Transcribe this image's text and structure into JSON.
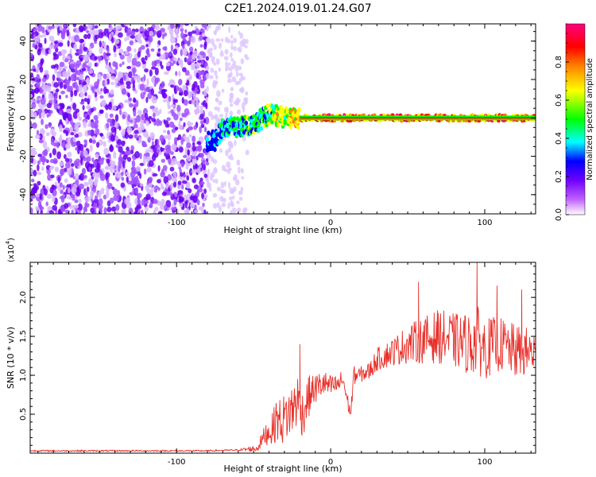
{
  "title": "C2E1.2024.019.01.24.G07",
  "chart_data": [
    {
      "type": "heatmap",
      "xlabel": "Height of straight line (km)",
      "ylabel": "Frequency (Hz)",
      "xlim": [
        -195,
        133
      ],
      "ylim": [
        -50,
        49
      ],
      "xticks": [
        -100,
        0,
        100
      ],
      "xtick_labels": [
        "-100",
        "0",
        "100"
      ],
      "yticks": [
        -40,
        -20,
        0,
        20,
        40
      ],
      "ytick_labels": [
        "-40",
        "-20",
        "0",
        "20",
        "40"
      ],
      "colorbar": {
        "label": "Normalized spectral amplitude",
        "range": [
          0,
          1
        ],
        "ticks": [
          0.0,
          0.2,
          0.4,
          0.6,
          0.8
        ],
        "tick_labels": [
          "0.0",
          "0.2",
          "0.4",
          "0.6",
          "0.8"
        ],
        "colors": [
          "#ffffff",
          "#a020f0",
          "#0000ff",
          "#00ffff",
          "#00ff00",
          "#ffff00",
          "#ff0000",
          "#ff0080"
        ]
      },
      "regions": [
        {
          "x": [
            -195,
            -80
          ],
          "description_level": 0.25,
          "freq_spread": [
            -50,
            49
          ]
        },
        {
          "x": [
            -80,
            -55
          ],
          "description_level": 0.1,
          "freq_spread": [
            -50,
            49
          ]
        },
        {
          "x": [
            -80,
            -20
          ],
          "description_level": 0.45,
          "freq_center": [
            -14,
            0
          ]
        },
        {
          "x": [
            -20,
            133
          ],
          "description_level": 0.9,
          "freq_center": [
            0,
            0
          ]
        }
      ],
      "ridge": {
        "x": [
          -80,
          -75,
          -70,
          -60,
          -50,
          -40,
          -30,
          -20,
          0,
          40,
          90,
          133
        ],
        "y": [
          -12,
          -12,
          -5,
          -5,
          -3,
          2,
          0,
          0,
          0,
          0,
          0,
          0
        ],
        "amplitude": [
          0.35,
          0.4,
          0.45,
          0.5,
          0.55,
          0.6,
          0.7,
          0.85,
          0.9,
          0.9,
          0.9,
          0.9
        ]
      },
      "grid": false
    },
    {
      "type": "line",
      "xlabel": "Height of straight line (km)",
      "ylabel": "SNR (10 * v/v)",
      "y_multiplier_label": "(x10",
      "y_multiplier_exp": "4",
      "y_multiplier_close": ")",
      "xlim": [
        -195,
        133
      ],
      "ylim": [
        0,
        2.45
      ],
      "xticks": [
        -100,
        0,
        100
      ],
      "xtick_labels": [
        "-100",
        "0",
        "100"
      ],
      "yticks": [
        0.5,
        1.0,
        1.5,
        2.0
      ],
      "ytick_labels": [
        "0.5",
        "1.0",
        "1.5",
        "2.0"
      ],
      "series": [
        {
          "color": "#e8302a",
          "x": [
            -195,
            -150,
            -100,
            -80,
            -60,
            -48,
            -42,
            -38,
            -35,
            -32,
            -28,
            -25,
            -22,
            -18,
            -15,
            -12,
            -8,
            -5,
            0,
            5,
            8,
            10,
            13,
            15,
            18,
            25,
            30,
            40,
            50,
            60,
            70,
            80,
            90,
            95,
            100,
            110,
            120,
            133
          ],
          "y": [
            0.03,
            0.03,
            0.03,
            0.03,
            0.04,
            0.06,
            0.25,
            0.3,
            0.45,
            0.4,
            0.5,
            0.55,
            0.7,
            0.5,
            0.7,
            0.8,
            0.85,
            0.9,
            0.85,
            0.88,
            0.95,
            0.75,
            0.5,
            1.0,
            1.0,
            1.05,
            1.2,
            1.3,
            1.4,
            1.45,
            1.5,
            1.45,
            1.4,
            1.45,
            1.35,
            1.4,
            1.3,
            1.3
          ],
          "noise": [
            0.01,
            0.01,
            0.01,
            0.01,
            0.01,
            0.05,
            0.15,
            0.2,
            0.3,
            0.3,
            0.35,
            0.35,
            0.4,
            0.3,
            0.3,
            0.2,
            0.2,
            0.18,
            0.15,
            0.12,
            0.15,
            0.1,
            0.1,
            0.12,
            0.1,
            0.12,
            0.15,
            0.18,
            0.25,
            0.3,
            0.35,
            0.35,
            0.4,
            0.45,
            0.4,
            0.35,
            0.35,
            0.3
          ],
          "peaks": [
            {
              "x": -20,
              "y": 1.4
            },
            {
              "x": 57,
              "y": 2.2
            },
            {
              "x": 95,
              "y": 2.45
            },
            {
              "x": 108,
              "y": 2.15
            },
            {
              "x": 124,
              "y": 2.1
            }
          ]
        }
      ],
      "grid": false
    }
  ]
}
